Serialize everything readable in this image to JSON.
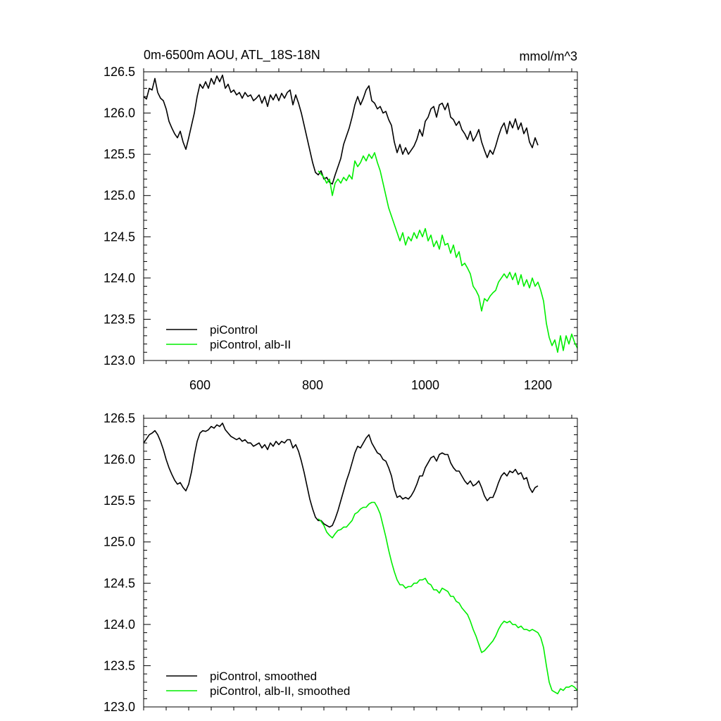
{
  "colors": {
    "control": "#000000",
    "alb": "#00ee00"
  },
  "chart_data": [
    {
      "type": "line",
      "title": "0m-6500m AOU, ATL_18S-18N",
      "unit": "mmol/m^3",
      "xlim": [
        500,
        1270
      ],
      "ylim": [
        123.0,
        126.5
      ],
      "xticks": [
        600,
        800,
        1000,
        1200
      ],
      "xtick_labels": [
        "600",
        "800",
        "1000",
        "1200"
      ],
      "yticks": [
        123.0,
        123.5,
        124.0,
        124.5,
        125.0,
        125.5,
        126.0,
        126.5
      ],
      "ytick_labels": [
        "123.0",
        "123.5",
        "124.0",
        "124.5",
        "125.0",
        "125.5",
        "126.0",
        "126.5"
      ],
      "legend_position": "bottom-left",
      "series": [
        {
          "name": "piControl",
          "color": "#000000",
          "x": [
            500,
            505,
            510,
            515,
            520,
            525,
            530,
            535,
            540,
            545,
            550,
            555,
            560,
            565,
            570,
            575,
            580,
            585,
            590,
            595,
            600,
            605,
            610,
            615,
            620,
            625,
            630,
            635,
            640,
            645,
            650,
            655,
            660,
            665,
            670,
            675,
            680,
            685,
            690,
            695,
            700,
            705,
            710,
            715,
            720,
            725,
            730,
            735,
            740,
            745,
            750,
            755,
            760,
            765,
            770,
            775,
            780,
            785,
            790,
            795,
            800,
            805,
            810,
            815,
            820,
            825,
            830,
            835,
            840,
            845,
            850,
            855,
            860,
            865,
            870,
            875,
            880,
            885,
            890,
            895,
            900,
            905,
            910,
            915,
            920,
            925,
            930,
            935,
            940,
            945,
            950,
            955,
            960,
            965,
            970,
            975,
            980,
            985,
            990,
            995,
            1000,
            1005,
            1010,
            1015,
            1020,
            1025,
            1030,
            1035,
            1040,
            1045,
            1050,
            1055,
            1060,
            1065,
            1070,
            1075,
            1080,
            1085,
            1090,
            1095,
            1100,
            1105,
            1110,
            1115,
            1120,
            1125,
            1130,
            1135,
            1140,
            1145,
            1150,
            1155,
            1160,
            1165,
            1170,
            1175,
            1180,
            1185,
            1190,
            1195,
            1200
          ],
          "y": [
            126.2,
            126.17,
            126.3,
            126.28,
            126.42,
            126.25,
            126.18,
            126.15,
            126.05,
            125.9,
            125.82,
            125.75,
            125.7,
            125.78,
            125.65,
            125.56,
            125.7,
            125.85,
            126.0,
            126.2,
            126.35,
            126.3,
            126.38,
            126.3,
            126.42,
            126.35,
            126.45,
            126.38,
            126.46,
            126.3,
            126.35,
            126.25,
            126.28,
            126.22,
            126.25,
            126.18,
            126.25,
            126.2,
            126.22,
            126.15,
            126.18,
            126.22,
            126.12,
            126.2,
            126.08,
            126.22,
            126.16,
            126.23,
            126.15,
            126.24,
            126.18,
            126.25,
            126.28,
            126.1,
            126.22,
            126.12,
            126.0,
            125.85,
            125.7,
            125.55,
            125.4,
            125.28,
            125.25,
            125.3,
            125.2,
            125.22,
            125.16,
            125.14,
            125.25,
            125.35,
            125.45,
            125.62,
            125.72,
            125.82,
            125.95,
            126.1,
            126.2,
            126.1,
            126.18,
            126.28,
            126.33,
            126.15,
            126.12,
            126.05,
            126.08,
            126.0,
            126.02,
            125.92,
            125.85,
            125.65,
            125.52,
            125.62,
            125.5,
            125.58,
            125.5,
            125.55,
            125.6,
            125.68,
            125.8,
            125.72,
            125.9,
            125.95,
            126.05,
            126.08,
            125.95,
            126.1,
            126.12,
            126.04,
            126.12,
            125.95,
            125.92,
            125.85,
            125.9,
            125.8,
            125.75,
            125.68,
            125.78,
            125.66,
            125.72,
            125.8,
            125.65,
            125.55,
            125.46,
            125.55,
            125.5,
            125.6,
            125.72,
            125.82,
            125.88,
            125.75,
            125.9,
            125.82,
            125.93,
            125.8,
            125.88,
            125.75,
            125.82,
            125.65,
            125.58,
            125.7,
            125.61
          ]
        },
        {
          "name": "piControl, alb-II",
          "color": "#00ee00",
          "x": [
            810,
            815,
            820,
            825,
            830,
            835,
            840,
            845,
            850,
            855,
            860,
            865,
            870,
            875,
            880,
            885,
            890,
            895,
            900,
            905,
            910,
            915,
            920,
            925,
            930,
            935,
            940,
            945,
            950,
            955,
            960,
            965,
            970,
            975,
            980,
            985,
            990,
            995,
            1000,
            1005,
            1010,
            1015,
            1020,
            1025,
            1030,
            1035,
            1040,
            1045,
            1050,
            1055,
            1060,
            1065,
            1070,
            1075,
            1080,
            1085,
            1090,
            1095,
            1100,
            1105,
            1110,
            1115,
            1120,
            1125,
            1130,
            1135,
            1140,
            1145,
            1150,
            1155,
            1160,
            1165,
            1170,
            1175,
            1180,
            1185,
            1190,
            1195,
            1200,
            1205,
            1210,
            1215,
            1220,
            1225,
            1230,
            1235,
            1240,
            1245,
            1250,
            1255,
            1260,
            1265,
            1270
          ],
          "y": [
            125.3,
            125.26,
            125.22,
            125.15,
            125.2,
            125.0,
            125.15,
            125.2,
            125.15,
            125.22,
            125.18,
            125.25,
            125.2,
            125.42,
            125.35,
            125.4,
            125.48,
            125.42,
            125.5,
            125.45,
            125.52,
            125.4,
            125.3,
            125.15,
            125.0,
            124.85,
            124.75,
            124.65,
            124.55,
            124.45,
            124.55,
            124.4,
            124.5,
            124.45,
            124.55,
            124.48,
            124.58,
            124.5,
            124.6,
            124.45,
            124.52,
            124.38,
            124.45,
            124.35,
            124.52,
            124.4,
            124.42,
            124.3,
            124.4,
            124.25,
            124.32,
            124.15,
            124.18,
            124.12,
            124.05,
            123.9,
            123.85,
            123.78,
            123.6,
            123.75,
            123.72,
            123.78,
            123.82,
            123.85,
            123.95,
            124.0,
            124.05,
            124.0,
            124.07,
            123.98,
            124.06,
            123.92,
            124.04,
            123.9,
            123.98,
            123.88,
            124.0,
            123.9,
            123.95,
            123.85,
            123.72,
            123.45,
            123.28,
            123.18,
            123.25,
            123.1,
            123.3,
            123.12,
            123.3,
            123.2,
            123.32,
            123.22,
            123.15
          ]
        }
      ]
    },
    {
      "type": "line",
      "title": "",
      "xlim": [
        500,
        1270
      ],
      "ylim": [
        123.0,
        126.5
      ],
      "xticks": [
        600,
        800,
        1000,
        1200
      ],
      "yticks": [
        123.0,
        123.5,
        124.0,
        124.5,
        125.0,
        125.5,
        126.0,
        126.5
      ],
      "ytick_labels": [
        "123.0",
        "123.5",
        "124.0",
        "124.5",
        "125.0",
        "125.5",
        "126.0",
        "126.5"
      ],
      "legend_position": "bottom-left",
      "series": [
        {
          "name": "piControl, smoothed",
          "color": "#000000",
          "x": [
            500,
            505,
            510,
            515,
            520,
            525,
            530,
            535,
            540,
            545,
            550,
            555,
            560,
            565,
            570,
            575,
            580,
            585,
            590,
            595,
            600,
            605,
            610,
            615,
            620,
            625,
            630,
            635,
            640,
            645,
            650,
            655,
            660,
            665,
            670,
            675,
            680,
            685,
            690,
            695,
            700,
            705,
            710,
            715,
            720,
            725,
            730,
            735,
            740,
            745,
            750,
            755,
            760,
            765,
            770,
            775,
            780,
            785,
            790,
            795,
            800,
            805,
            810,
            815,
            820,
            825,
            830,
            835,
            840,
            845,
            850,
            855,
            860,
            865,
            870,
            875,
            880,
            885,
            890,
            895,
            900,
            905,
            910,
            915,
            920,
            925,
            930,
            935,
            940,
            945,
            950,
            955,
            960,
            965,
            970,
            975,
            980,
            985,
            990,
            995,
            1000,
            1005,
            1010,
            1015,
            1020,
            1025,
            1030,
            1035,
            1040,
            1045,
            1050,
            1055,
            1060,
            1065,
            1070,
            1075,
            1080,
            1085,
            1090,
            1095,
            1100,
            1105,
            1110,
            1115,
            1120,
            1125,
            1130,
            1135,
            1140,
            1145,
            1150,
            1155,
            1160,
            1165,
            1170,
            1175,
            1180,
            1185,
            1190,
            1195,
            1200
          ],
          "y": [
            126.2,
            126.25,
            126.3,
            126.32,
            126.35,
            126.3,
            126.22,
            126.12,
            126.0,
            125.9,
            125.82,
            125.75,
            125.7,
            125.72,
            125.66,
            125.62,
            125.7,
            125.85,
            126.05,
            126.22,
            126.32,
            126.35,
            126.34,
            126.36,
            126.4,
            126.38,
            126.42,
            126.4,
            126.44,
            126.36,
            126.32,
            126.28,
            126.26,
            126.24,
            126.26,
            126.22,
            126.24,
            126.2,
            126.2,
            126.16,
            126.18,
            126.2,
            126.14,
            126.18,
            126.12,
            126.2,
            126.16,
            126.22,
            126.18,
            126.22,
            126.2,
            126.24,
            126.24,
            126.14,
            126.18,
            126.1,
            125.98,
            125.84,
            125.68,
            125.52,
            125.4,
            125.3,
            125.26,
            125.26,
            125.22,
            125.2,
            125.18,
            125.2,
            125.28,
            125.38,
            125.5,
            125.62,
            125.74,
            125.84,
            125.96,
            126.08,
            126.16,
            126.14,
            126.2,
            126.26,
            126.3,
            126.2,
            126.14,
            126.08,
            126.06,
            126.0,
            125.98,
            125.9,
            125.8,
            125.64,
            125.54,
            125.56,
            125.52,
            125.54,
            125.52,
            125.56,
            125.62,
            125.7,
            125.8,
            125.8,
            125.9,
            125.96,
            126.02,
            126.04,
            125.98,
            126.06,
            126.08,
            126.06,
            126.06,
            125.96,
            125.9,
            125.86,
            125.86,
            125.8,
            125.74,
            125.7,
            125.74,
            125.68,
            125.7,
            125.74,
            125.66,
            125.56,
            125.5,
            125.54,
            125.54,
            125.62,
            125.72,
            125.8,
            125.84,
            125.8,
            125.86,
            125.84,
            125.88,
            125.82,
            125.84,
            125.76,
            125.78,
            125.66,
            125.6,
            125.66,
            125.68
          ]
        },
        {
          "name": "piControl, alb-II, smoothed",
          "color": "#00ee00",
          "x": [
            810,
            815,
            820,
            825,
            830,
            835,
            840,
            845,
            850,
            855,
            860,
            865,
            870,
            875,
            880,
            885,
            890,
            895,
            900,
            905,
            910,
            915,
            920,
            925,
            930,
            935,
            940,
            945,
            950,
            955,
            960,
            965,
            970,
            975,
            980,
            985,
            990,
            995,
            1000,
            1005,
            1010,
            1015,
            1020,
            1025,
            1030,
            1035,
            1040,
            1045,
            1050,
            1055,
            1060,
            1065,
            1070,
            1075,
            1080,
            1085,
            1090,
            1095,
            1100,
            1105,
            1110,
            1115,
            1120,
            1125,
            1130,
            1135,
            1140,
            1145,
            1150,
            1155,
            1160,
            1165,
            1170,
            1175,
            1180,
            1185,
            1190,
            1195,
            1200,
            1205,
            1210,
            1215,
            1220,
            1225,
            1230,
            1235,
            1240,
            1245,
            1250,
            1255,
            1260,
            1265,
            1270
          ],
          "y": [
            125.28,
            125.25,
            125.2,
            125.12,
            125.08,
            125.05,
            125.1,
            125.14,
            125.15,
            125.18,
            125.18,
            125.22,
            125.26,
            125.34,
            125.36,
            125.4,
            125.42,
            125.42,
            125.46,
            125.48,
            125.48,
            125.42,
            125.34,
            125.2,
            125.06,
            124.9,
            124.76,
            124.64,
            124.54,
            124.48,
            124.48,
            124.44,
            124.46,
            124.46,
            124.5,
            124.5,
            124.54,
            124.54,
            124.56,
            124.5,
            124.48,
            124.42,
            124.42,
            124.38,
            124.44,
            124.42,
            124.4,
            124.34,
            124.34,
            124.28,
            124.26,
            124.2,
            124.16,
            124.12,
            124.04,
            123.94,
            123.86,
            123.76,
            123.66,
            123.68,
            123.72,
            123.76,
            123.8,
            123.86,
            123.94,
            124.0,
            124.04,
            124.02,
            124.04,
            124.0,
            124.0,
            123.96,
            123.98,
            123.94,
            123.94,
            123.92,
            123.94,
            123.92,
            123.9,
            123.84,
            123.72,
            123.5,
            123.3,
            123.2,
            123.18,
            123.16,
            123.22,
            123.2,
            123.24,
            123.24,
            123.26,
            123.24,
            123.2
          ]
        }
      ]
    }
  ]
}
